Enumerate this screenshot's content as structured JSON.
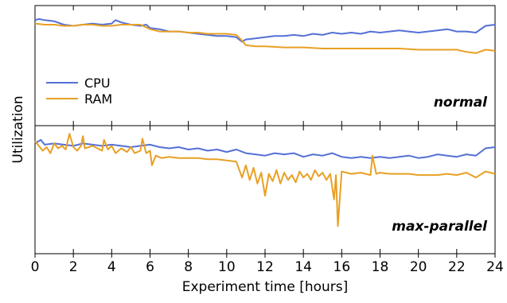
{
  "chart_data": {
    "type": "line",
    "xlabel": "Experiment time [hours]",
    "ylabel": "Utilization",
    "xlim": [
      0,
      24
    ],
    "ylim": [
      0,
      1
    ],
    "xticks": [
      "0",
      "2",
      "4",
      "6",
      "8",
      "10",
      "12",
      "14",
      "16",
      "18",
      "20",
      "22",
      "24"
    ],
    "legend": {
      "position": "left",
      "entries": [
        "CPU",
        "RAM"
      ]
    },
    "colors": {
      "CPU": "#5470d6",
      "RAM": "#e8a024"
    },
    "panels": [
      {
        "label": "normal",
        "series": [
          {
            "name": "CPU",
            "x": [
              0,
              0.2,
              0.5,
              1.0,
              1.5,
              2.0,
              2.5,
              3.0,
              3.5,
              4.0,
              4.2,
              4.5,
              5.0,
              5.5,
              5.8,
              6.0,
              6.5,
              7.0,
              7.5,
              8.0,
              8.5,
              9.0,
              9.5,
              10.0,
              10.5,
              10.8,
              11.0,
              11.5,
              12.0,
              12.5,
              13.0,
              13.5,
              14.0,
              14.5,
              15.0,
              15.5,
              16.0,
              16.5,
              17.0,
              17.5,
              18.0,
              18.5,
              19.0,
              19.5,
              20.0,
              20.5,
              21.0,
              21.5,
              22.0,
              22.5,
              23.0,
              23.5,
              24.0
            ],
            "values": [
              0.9,
              0.91,
              0.9,
              0.89,
              0.86,
              0.85,
              0.86,
              0.87,
              0.86,
              0.87,
              0.9,
              0.88,
              0.86,
              0.85,
              0.86,
              0.83,
              0.82,
              0.8,
              0.8,
              0.79,
              0.78,
              0.77,
              0.76,
              0.76,
              0.75,
              0.71,
              0.73,
              0.74,
              0.75,
              0.76,
              0.76,
              0.77,
              0.76,
              0.78,
              0.77,
              0.79,
              0.78,
              0.79,
              0.78,
              0.8,
              0.79,
              0.8,
              0.81,
              0.8,
              0.79,
              0.8,
              0.81,
              0.82,
              0.8,
              0.8,
              0.79,
              0.85,
              0.86
            ]
          },
          {
            "name": "RAM",
            "x": [
              0,
              0.5,
              1.0,
              1.5,
              2.0,
              2.5,
              3.0,
              3.5,
              4.0,
              4.5,
              5.0,
              5.5,
              6.0,
              6.5,
              7.0,
              7.5,
              8.0,
              8.5,
              9.0,
              9.5,
              10.0,
              10.5,
              10.8,
              11.0,
              11.5,
              12.0,
              13.0,
              14.0,
              15.0,
              16.0,
              17.0,
              18.0,
              19.0,
              20.0,
              21.0,
              22.0,
              22.5,
              23.0,
              23.5,
              24.0
            ],
            "values": [
              0.87,
              0.86,
              0.86,
              0.85,
              0.85,
              0.86,
              0.86,
              0.85,
              0.85,
              0.86,
              0.86,
              0.86,
              0.82,
              0.8,
              0.8,
              0.8,
              0.79,
              0.79,
              0.78,
              0.78,
              0.78,
              0.77,
              0.72,
              0.68,
              0.67,
              0.67,
              0.66,
              0.66,
              0.65,
              0.65,
              0.65,
              0.65,
              0.65,
              0.64,
              0.64,
              0.64,
              0.62,
              0.61,
              0.64,
              0.63
            ]
          }
        ]
      },
      {
        "label": "max-parallel",
        "series": [
          {
            "name": "CPU",
            "x": [
              0,
              0.3,
              0.5,
              1.0,
              1.5,
              2.0,
              2.5,
              3.0,
              3.5,
              4.0,
              4.5,
              5.0,
              5.5,
              6.0,
              6.5,
              7.0,
              7.5,
              8.0,
              8.5,
              9.0,
              9.5,
              10.0,
              10.5,
              11.0,
              11.5,
              12.0,
              12.5,
              13.0,
              13.5,
              14.0,
              14.5,
              15.0,
              15.5,
              16.0,
              16.5,
              17.0,
              17.5,
              18.0,
              18.5,
              19.0,
              19.5,
              20.0,
              20.5,
              21.0,
              21.5,
              22.0,
              22.5,
              23.0,
              23.5,
              24.0
            ],
            "values": [
              0.88,
              0.91,
              0.87,
              0.88,
              0.87,
              0.86,
              0.88,
              0.87,
              0.86,
              0.87,
              0.86,
              0.85,
              0.86,
              0.87,
              0.85,
              0.84,
              0.85,
              0.83,
              0.84,
              0.82,
              0.83,
              0.81,
              0.83,
              0.8,
              0.79,
              0.78,
              0.8,
              0.79,
              0.8,
              0.77,
              0.79,
              0.78,
              0.8,
              0.77,
              0.76,
              0.77,
              0.76,
              0.77,
              0.76,
              0.77,
              0.78,
              0.76,
              0.77,
              0.79,
              0.78,
              0.77,
              0.79,
              0.78,
              0.84,
              0.85
            ]
          },
          {
            "name": "RAM",
            "x": [
              0,
              0.2,
              0.4,
              0.6,
              0.8,
              1.0,
              1.2,
              1.4,
              1.6,
              1.8,
              2.0,
              2.2,
              2.4,
              2.5,
              2.6,
              3.0,
              3.5,
              3.6,
              3.8,
              4.0,
              4.2,
              4.5,
              4.8,
              5.0,
              5.2,
              5.5,
              5.6,
              5.8,
              6.0,
              6.1,
              6.3,
              6.6,
              7.0,
              7.5,
              8.0,
              8.5,
              9.0,
              9.5,
              10.0,
              10.5,
              10.8,
              11.0,
              11.2,
              11.4,
              11.6,
              11.8,
              12.0,
              12.2,
              12.4,
              12.6,
              12.8,
              13.0,
              13.2,
              13.4,
              13.6,
              13.8,
              14.0,
              14.2,
              14.4,
              14.6,
              14.8,
              15.0,
              15.2,
              15.4,
              15.6,
              15.7,
              15.8,
              16.0,
              16.5,
              17.0,
              17.5,
              17.6,
              17.8,
              18.0,
              18.5,
              19.0,
              19.5,
              20.0,
              20.5,
              21.0,
              21.5,
              22.0,
              22.5,
              23.0,
              23.5,
              24.0
            ],
            "values": [
              0.9,
              0.86,
              0.82,
              0.85,
              0.8,
              0.88,
              0.84,
              0.86,
              0.83,
              0.96,
              0.85,
              0.82,
              0.86,
              0.94,
              0.84,
              0.86,
              0.82,
              0.91,
              0.83,
              0.86,
              0.8,
              0.84,
              0.81,
              0.85,
              0.8,
              0.82,
              0.92,
              0.8,
              0.82,
              0.7,
              0.78,
              0.76,
              0.77,
              0.76,
              0.76,
              0.76,
              0.75,
              0.75,
              0.74,
              0.73,
              0.6,
              0.7,
              0.58,
              0.68,
              0.55,
              0.64,
              0.45,
              0.63,
              0.57,
              0.66,
              0.55,
              0.64,
              0.58,
              0.62,
              0.56,
              0.65,
              0.6,
              0.63,
              0.58,
              0.66,
              0.61,
              0.64,
              0.58,
              0.63,
              0.42,
              0.62,
              0.2,
              0.65,
              0.63,
              0.64,
              0.62,
              0.78,
              0.63,
              0.64,
              0.63,
              0.63,
              0.63,
              0.62,
              0.62,
              0.62,
              0.63,
              0.62,
              0.64,
              0.6,
              0.65,
              0.63
            ]
          }
        ]
      }
    ]
  }
}
